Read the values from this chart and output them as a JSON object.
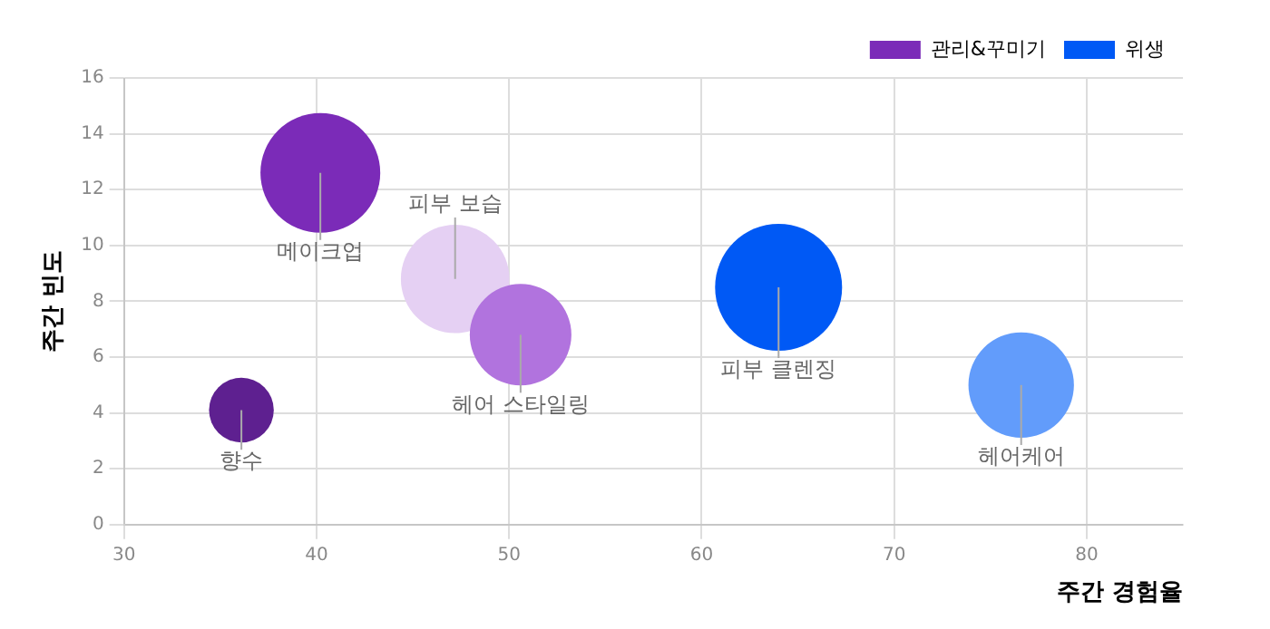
{
  "chart_data": {
    "type": "bubble",
    "xlabel": "주간 경험율",
    "ylabel": "주간 빈도",
    "xlim": [
      30,
      85
    ],
    "xticks": [
      30,
      40,
      50,
      60,
      70,
      80
    ],
    "ylim": [
      0,
      16
    ],
    "yticks": [
      0,
      2,
      4,
      6,
      8,
      10,
      12,
      14,
      16
    ],
    "grid": true,
    "legend": "top right",
    "series": [
      {
        "name": "관리&꾸미기",
        "color": "#7b2bb8",
        "x": [
          40.2,
          47.2,
          50.6,
          36.1
        ],
        "values": [
          12.6,
          8.8,
          6.8,
          4.1
        ],
        "sizes": [
          0.89,
          0.73,
          0.64,
          0.26
        ],
        "colors": [
          "#7b2bb8",
          "#e5d0f3",
          "#b173de",
          "#5e2090"
        ]
      },
      {
        "name": "위생",
        "color": "#0059f5",
        "x": [
          64.0,
          76.6
        ],
        "values": [
          8.5,
          5.0
        ],
        "sizes": [
          1,
          0.69
        ],
        "colors": [
          "#0059f5",
          "#629cfb"
        ]
      }
    ],
    "annotations": [
      {
        "text": "메이크업",
        "x": 40.2,
        "y": 12.6
      },
      {
        "text": "피부 보습",
        "x": 47.2,
        "y": 8.8
      },
      {
        "text": "헤어 스타일링",
        "x": 50.6,
        "y": 6.8
      },
      {
        "text": "향수",
        "x": 36.1,
        "y": 4.1
      },
      {
        "text": "피부 클렌징",
        "x": 64.0,
        "y": 8.5
      },
      {
        "text": "헤어케어",
        "x": 76.6,
        "y": 5.0
      }
    ]
  }
}
